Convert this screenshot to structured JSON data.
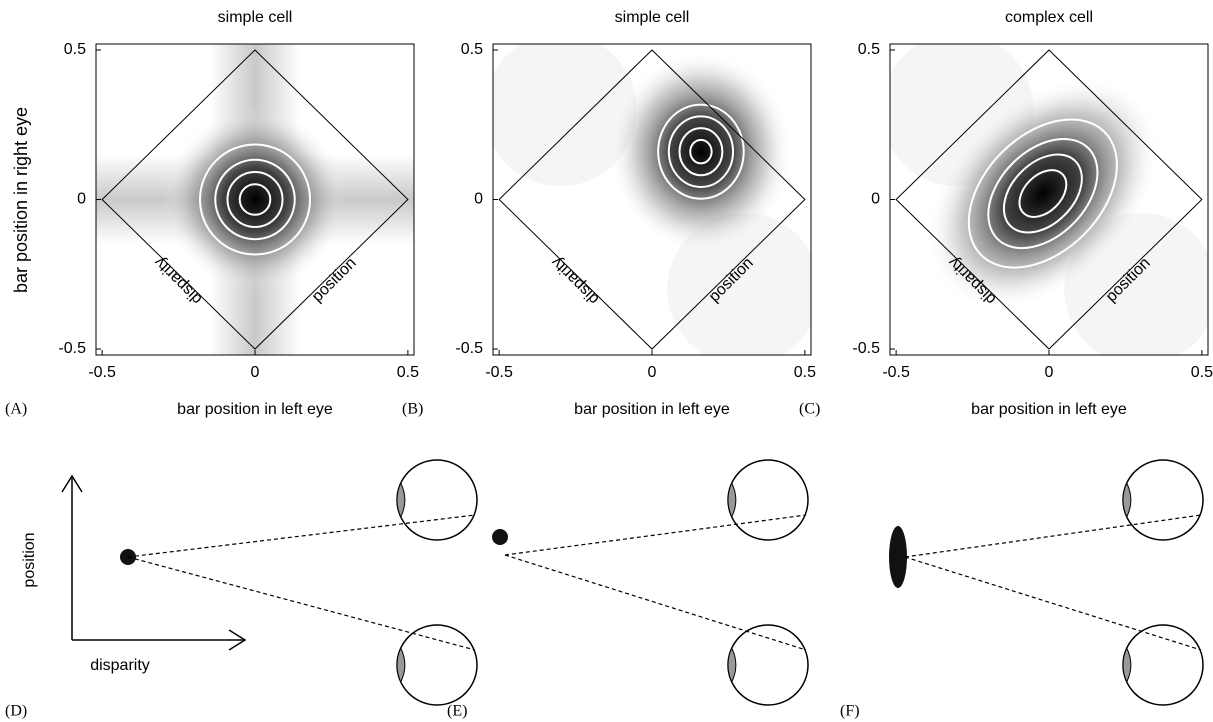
{
  "chart_data": [
    {
      "type": "heatmap",
      "title": "simple cell",
      "panel_label": "(A)",
      "xlabel": "bar position in left eye",
      "ylabel": "bar position in right eye",
      "annotations": [
        "disparity",
        "position"
      ],
      "xlim": [
        -0.52,
        0.52
      ],
      "ylim": [
        -0.52,
        0.52
      ],
      "xticks": [
        -0.5,
        0,
        0.5
      ],
      "yticks": [
        -0.5,
        0,
        0.5
      ]
    },
    {
      "type": "heatmap",
      "title": "simple cell",
      "panel_label": "(B)",
      "xlabel": "bar position in left eye",
      "annotations": [
        "disparity",
        "position"
      ],
      "xlim": [
        -0.52,
        0.52
      ],
      "ylim": [
        -0.52,
        0.52
      ],
      "xticks": [
        -0.5,
        0,
        0.5
      ],
      "yticks": [
        -0.5,
        0,
        0.5
      ]
    },
    {
      "type": "heatmap",
      "title": "complex cell",
      "panel_label": "(C)",
      "xlabel": "bar position in left eye",
      "annotations": [
        "disparity",
        "position"
      ],
      "xlim": [
        -0.52,
        0.52
      ],
      "ylim": [
        -0.52,
        0.52
      ],
      "xticks": [
        -0.5,
        0,
        0.5
      ],
      "yticks": [
        -0.5,
        0,
        0.5
      ]
    }
  ],
  "diagrams": [
    {
      "panel_label": "(D)",
      "axis_labels": [
        "position",
        "disparity"
      ]
    },
    {
      "panel_label": "(E)"
    },
    {
      "panel_label": "(F)"
    }
  ]
}
